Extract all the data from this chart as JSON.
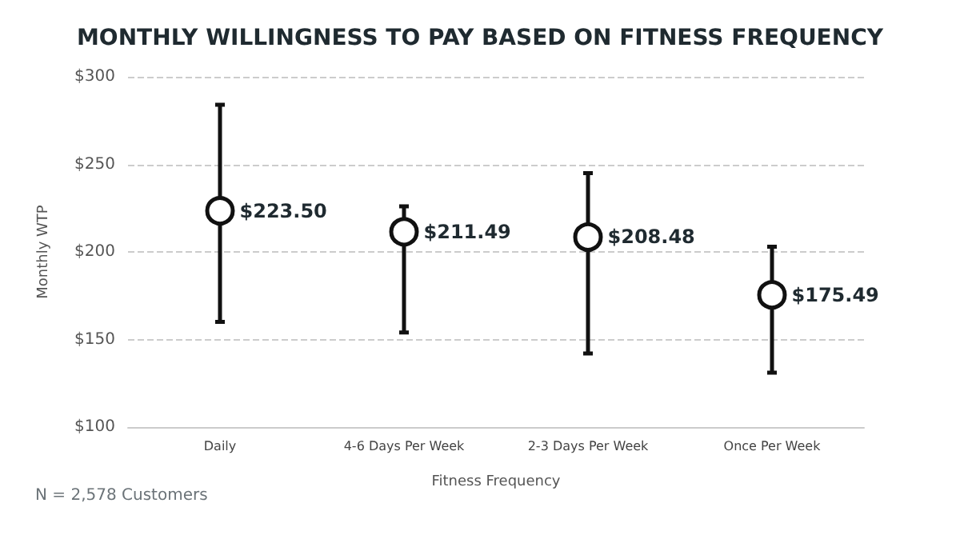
{
  "chart_data": {
    "type": "scatter",
    "title": "MONTHLY WILLINGNESS TO PAY BASED ON FITNESS FREQUENCY",
    "xlabel": "Fitness Frequency",
    "ylabel": "Monthly WTP",
    "categories": [
      "Daily",
      "4-6 Days Per Week",
      "2-3 Days Per Week",
      "Once Per Week"
    ],
    "series": [
      {
        "color": "#111111",
        "values": [
          223.5,
          211.49,
          208.48,
          175.49
        ],
        "value_labels": [
          "$223.50",
          "$211.49",
          "$208.48",
          "$175.49"
        ],
        "errors": [
          [
            160,
            284
          ],
          [
            154,
            226
          ],
          [
            142,
            245
          ],
          [
            131,
            203
          ]
        ]
      }
    ],
    "ylim": [
      100,
      300
    ],
    "yticks": [
      {
        "value": 100,
        "label": "$100"
      },
      {
        "value": 150,
        "label": "$150"
      },
      {
        "value": 200,
        "label": "$200"
      },
      {
        "value": 250,
        "label": "$250"
      },
      {
        "value": 300,
        "label": "$300"
      }
    ],
    "grid": "y",
    "marker": "circle",
    "annotations": [
      "N = 2,578 Customers"
    ]
  }
}
